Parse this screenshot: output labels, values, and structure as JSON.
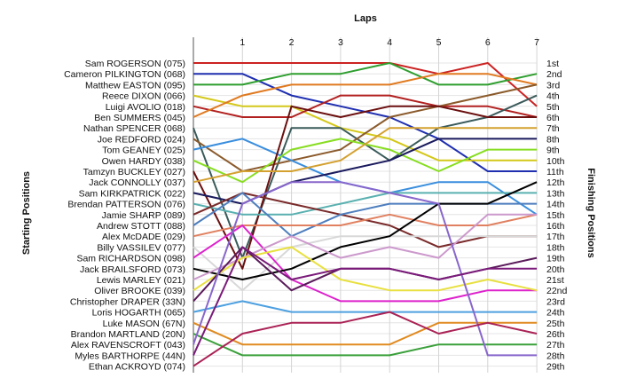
{
  "chart_data": {
    "type": "line",
    "title": "",
    "xlabel": "Laps",
    "ylabel_left": "Starting Positions",
    "ylabel_right": "Finishing Positions",
    "x_ticks": [
      "1",
      "2",
      "3",
      "4",
      "5",
      "6",
      "7"
    ],
    "drivers": [
      "Sam ROGERSON (075)",
      "Cameron PILKINGTON (068)",
      "Matthew EASTON (095)",
      "Reece DIXON (066)",
      "Luigi AVOLIO (018)",
      "Ben SUMMERS (045)",
      "Nathan SPENCER (068)",
      "Joe REDFORD (024)",
      "Tom GEANEY (025)",
      "Owen HARDY (038)",
      "Tamzyn BUCKLEY (027)",
      "Jack CONNOLLY (037)",
      "Sam KIRKPATRICK (022)",
      "Brendan PATTERSON (076)",
      "Jamie SHARP (089)",
      "Andrew STOTT (088)",
      "Alex McDADE (029)",
      "Billy VASSILEV (077)",
      "Sam RICHARDSON (098)",
      "Jack BRAILSFORD (073)",
      "Lewis MARLEY (021)",
      "Oliver BROOKE (039)",
      "Christopher DRAPER (33N)",
      "Loris HOGARTH (065)",
      "Luke MASON (67N)",
      "Brandon MARTLAND (20N)",
      "Alex RAVENSCROFT (043)",
      "Myles BARTHORPE (44N)",
      "Ethan ACKROYD (074)"
    ],
    "finishing_labels": [
      "1st",
      "2nd",
      "3rd",
      "4th",
      "5th",
      "6th",
      "7th",
      "8th",
      "9th",
      "10th",
      "11th",
      "12th",
      "13th",
      "14th",
      "15th",
      "16th",
      "17th",
      "18th",
      "19th",
      "20th",
      "21st",
      "22nd",
      "23rd",
      "24th",
      "25th",
      "26th",
      "27th",
      "28th",
      "29th"
    ],
    "series": [
      {
        "color": "#cc2222",
        "positions": [
          1,
          1,
          1,
          1,
          1,
          2,
          1,
          5
        ]
      },
      {
        "color": "#1f2fb0",
        "positions": [
          2,
          2,
          4,
          5,
          6,
          8,
          11,
          11
        ]
      },
      {
        "color": "#2e9e2e",
        "positions": [
          3,
          3,
          2,
          2,
          1,
          3,
          3,
          2
        ]
      },
      {
        "color": "#d4c81a",
        "positions": [
          4,
          5,
          5,
          7,
          8,
          10,
          10,
          10
        ]
      },
      {
        "color": "#b22020",
        "positions": [
          5,
          6,
          6,
          4,
          4,
          5,
          5,
          6
        ]
      },
      {
        "color": "#e07a20",
        "positions": [
          6,
          4,
          3,
          3,
          3,
          2,
          2,
          3
        ]
      },
      {
        "color": "#3a5a5a",
        "positions": [
          7,
          19,
          7,
          7,
          10,
          7,
          6,
          4
        ]
      },
      {
        "color": "#8b5a2b",
        "positions": [
          8,
          11,
          10,
          9,
          6,
          5,
          4,
          3
        ]
      },
      {
        "color": "#3a8ede",
        "positions": [
          9,
          8,
          10,
          12,
          13,
          12,
          12,
          15
        ]
      },
      {
        "color": "#88dd22",
        "positions": [
          10,
          12,
          9,
          8,
          9,
          11,
          9,
          9
        ]
      },
      {
        "color": "#6b0f0f",
        "positions": [
          11,
          20,
          5,
          6,
          5,
          5,
          6,
          6
        ]
      },
      {
        "color": "#d4a030",
        "positions": [
          12,
          11,
          11,
          10,
          7,
          7,
          7,
          7
        ]
      },
      {
        "color": "#1a1a5e",
        "positions": [
          13,
          14,
          12,
          11,
          10,
          8,
          8,
          8
        ]
      },
      {
        "color": "#5ab0b0",
        "positions": [
          14,
          15,
          15,
          14,
          13,
          13,
          13,
          13
        ]
      },
      {
        "color": "#7a2a2a",
        "positions": [
          15,
          13,
          14,
          15,
          16,
          18,
          17,
          17
        ]
      },
      {
        "color": "#4e7ebe",
        "positions": [
          16,
          13,
          17,
          15,
          14,
          14,
          14,
          14
        ]
      },
      {
        "color": "#e08060",
        "positions": [
          17,
          16,
          16,
          16,
          15,
          16,
          16,
          15
        ]
      },
      {
        "color": "#d8d8d8",
        "positions": [
          18,
          22,
          18,
          17,
          17,
          17,
          17,
          17
        ]
      },
      {
        "color": "#dd22cc",
        "positions": [
          19,
          16,
          21,
          23,
          23,
          23,
          22,
          22
        ]
      },
      {
        "color": "#000000",
        "positions": [
          20,
          21,
          20,
          18,
          17,
          14,
          14,
          12
        ]
      },
      {
        "color": "#cc99cc",
        "positions": [
          21,
          19,
          17,
          19,
          18,
          19,
          15,
          15
        ]
      },
      {
        "color": "#e8e040",
        "positions": [
          22,
          19,
          18,
          21,
          22,
          22,
          21,
          22
        ]
      },
      {
        "color": "#5a1a5a",
        "positions": [
          23,
          18,
          22,
          20,
          20,
          21,
          20,
          19
        ]
      },
      {
        "color": "#4da0e0",
        "positions": [
          24,
          23,
          24,
          24,
          24,
          24,
          24,
          24
        ]
      },
      {
        "color": "#e08a20",
        "positions": [
          25,
          27,
          27,
          27,
          27,
          25,
          25,
          25
        ]
      },
      {
        "color": "#3aa03a",
        "positions": [
          26,
          28,
          28,
          28,
          28,
          27,
          27,
          27
        ]
      },
      {
        "color": "#8866cc",
        "positions": [
          27,
          14,
          12,
          12,
          13,
          14,
          28,
          28
        ]
      },
      {
        "color": "#7a1a7a",
        "positions": [
          28,
          18,
          21,
          20,
          20,
          21,
          20,
          20
        ]
      },
      {
        "color": "#aa2255",
        "positions": [
          29,
          26,
          25,
          25,
          24,
          26,
          25,
          26
        ]
      }
    ]
  }
}
